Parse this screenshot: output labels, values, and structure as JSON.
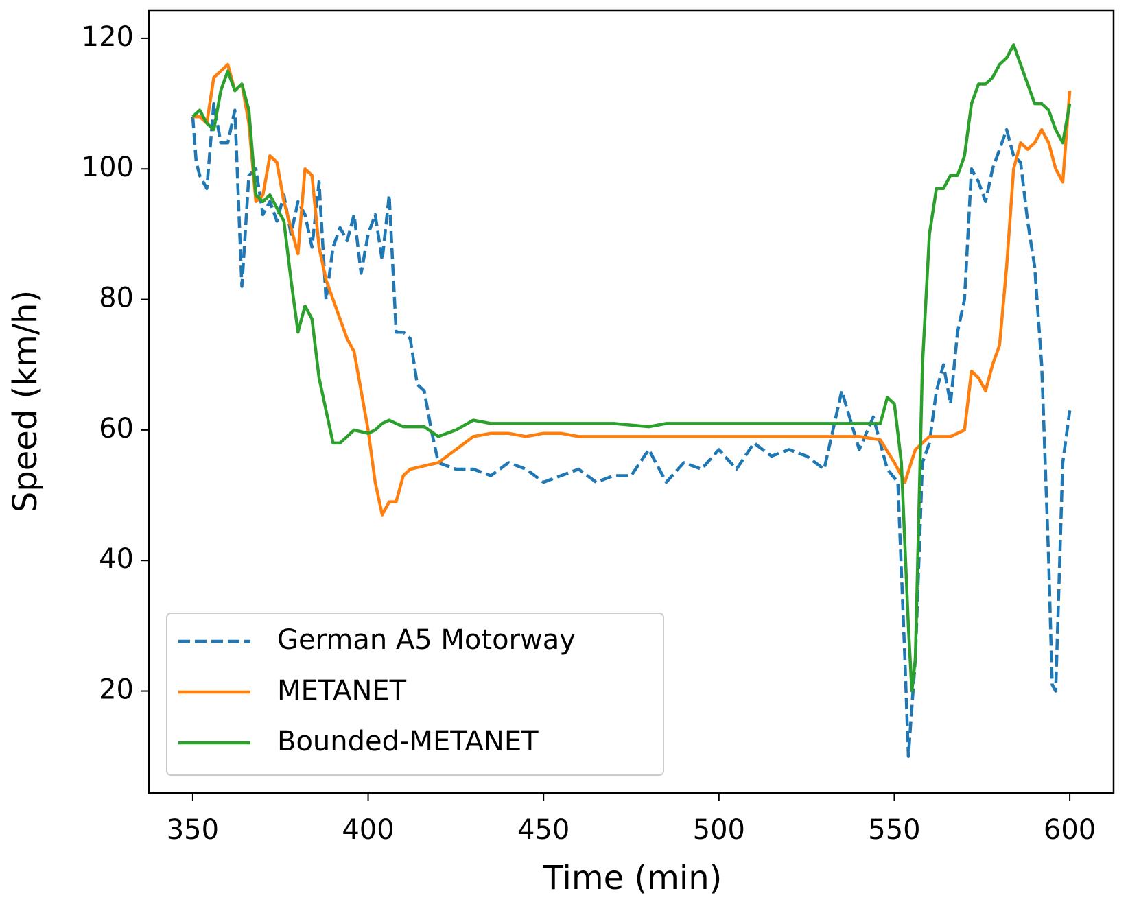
{
  "chart_data": {
    "type": "line",
    "xlabel": "Time (min)",
    "ylabel": "Speed (km/h)",
    "xlim": [
      337.5,
      612.5
    ],
    "ylim": [
      4.4,
      124.3
    ],
    "xticks": [
      350,
      400,
      450,
      500,
      550,
      600
    ],
    "yticks": [
      20,
      40,
      60,
      80,
      100,
      120
    ],
    "legend": "lower left",
    "series": [
      {
        "name": "German A5 Motorway",
        "color": "#1f77b4",
        "linestyle": "dashed",
        "x": [
          350,
          351,
          352,
          354,
          356,
          358,
          360,
          362,
          364,
          366,
          368,
          370,
          372,
          374,
          376,
          378,
          380,
          382,
          384,
          386,
          388,
          390,
          392,
          394,
          396,
          398,
          400,
          402,
          404,
          406,
          408,
          410,
          412,
          414,
          416,
          418,
          420,
          425,
          430,
          435,
          440,
          445,
          450,
          455,
          460,
          465,
          470,
          475,
          480,
          485,
          490,
          495,
          500,
          505,
          510,
          515,
          520,
          525,
          530,
          535,
          540,
          544,
          548,
          551,
          553,
          554,
          556,
          558,
          560,
          562,
          564,
          566,
          568,
          570,
          572,
          574,
          576,
          578,
          580,
          582,
          584,
          586,
          588,
          590,
          592,
          594,
          595,
          596,
          598,
          600
        ],
        "values": [
          108,
          101,
          99,
          97,
          110,
          104,
          104,
          109,
          82,
          99,
          100,
          93,
          95,
          92,
          96,
          90,
          95,
          93,
          88,
          98,
          80,
          88,
          91,
          89,
          93,
          84,
          90,
          93,
          86,
          96,
          75,
          75,
          74,
          67,
          66,
          60,
          55,
          54,
          54,
          53,
          55,
          54,
          52,
          53,
          54,
          52,
          53,
          53,
          57,
          52,
          55,
          54,
          57,
          54,
          58,
          56,
          57,
          56,
          54,
          66,
          57,
          62,
          54,
          52,
          25,
          10,
          25,
          55,
          58,
          66,
          70,
          64,
          75,
          80,
          100,
          98,
          95,
          100,
          103,
          106,
          102,
          101,
          92,
          85,
          70,
          40,
          21,
          20,
          55,
          63
        ]
      },
      {
        "name": "METANET",
        "color": "#ff7f0e",
        "linestyle": "solid",
        "x": [
          350,
          352,
          354,
          356,
          358,
          360,
          362,
          364,
          366,
          368,
          370,
          372,
          374,
          376,
          378,
          380,
          382,
          384,
          386,
          388,
          390,
          392,
          394,
          396,
          398,
          400,
          402,
          404,
          406,
          408,
          410,
          412,
          416,
          420,
          425,
          430,
          435,
          440,
          445,
          450,
          455,
          460,
          470,
          480,
          490,
          500,
          510,
          520,
          530,
          540,
          546,
          550,
          553,
          556,
          560,
          566,
          570,
          572,
          574,
          576,
          578,
          580,
          582,
          584,
          586,
          588,
          590,
          592,
          594,
          596,
          598,
          600
        ],
        "values": [
          108,
          108,
          107,
          114,
          115,
          116,
          112,
          113,
          107,
          95,
          96,
          102,
          101,
          95,
          91,
          87,
          100,
          99,
          88,
          83,
          80,
          77,
          74,
          72,
          66,
          60,
          52,
          47,
          49,
          49,
          53,
          54,
          54.5,
          55,
          57,
          59,
          59.5,
          59.5,
          59,
          59.5,
          59.5,
          59,
          59,
          59,
          59,
          59,
          59,
          59,
          59,
          59,
          58.5,
          55,
          52,
          57,
          59,
          59,
          60,
          69,
          68,
          66,
          70,
          73,
          85,
          100,
          104,
          103,
          104,
          106,
          104,
          100,
          98,
          112
        ]
      },
      {
        "name": "Bounded-METANET",
        "color": "#2ca02c",
        "linestyle": "solid",
        "x": [
          350,
          352,
          354,
          356,
          358,
          360,
          362,
          364,
          366,
          368,
          370,
          372,
          374,
          376,
          378,
          380,
          382,
          384,
          386,
          388,
          390,
          392,
          394,
          396,
          400,
          402,
          404,
          406,
          408,
          410,
          416,
          420,
          425,
          430,
          435,
          440,
          450,
          460,
          470,
          480,
          485,
          490,
          500,
          510,
          520,
          530,
          540,
          546,
          548,
          550,
          552,
          554,
          555,
          556,
          558,
          560,
          562,
          564,
          566,
          568,
          570,
          572,
          574,
          576,
          578,
          580,
          582,
          584,
          586,
          588,
          590,
          592,
          594,
          596,
          598,
          600
        ],
        "values": [
          108,
          109,
          107,
          106,
          112,
          115,
          112,
          113,
          109,
          96,
          95,
          96,
          94,
          92,
          83,
          75,
          79,
          77,
          68,
          63,
          58,
          58,
          59,
          60,
          59.5,
          60,
          61,
          61.5,
          61,
          60.5,
          60.5,
          59,
          60,
          61.5,
          61,
          61,
          61,
          61,
          61,
          60.5,
          61,
          61,
          61,
          61,
          61,
          61,
          61,
          61,
          65,
          64,
          55,
          30,
          20,
          25,
          70,
          90,
          97,
          97,
          99,
          99,
          102,
          110,
          113,
          113,
          114,
          116,
          117,
          119,
          116,
          113,
          110,
          110,
          109,
          106,
          104,
          110
        ]
      }
    ]
  }
}
